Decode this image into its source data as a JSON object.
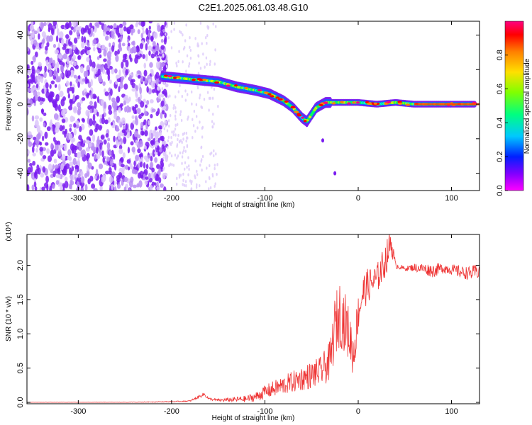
{
  "page": {
    "title": "C2E1.2025.061.03.48.G10"
  },
  "chart_data": [
    {
      "type": "heatmap",
      "title": "C2E1.2025.061.03.48.G10",
      "xlabel": "Height of straight line (km)",
      "ylabel": "Frequency (Hz)",
      "xlim": [
        -355,
        130
      ],
      "ylim": [
        -50,
        48
      ],
      "xticks": [
        -300,
        -200,
        -100,
        0,
        100
      ],
      "yticks": [
        -40,
        -20,
        0,
        20,
        40
      ],
      "colorbar": {
        "label": "Normalized spectral amplitude",
        "range": [
          0.0,
          1.0
        ],
        "ticks": [
          0.0,
          0.2,
          0.4,
          0.6,
          0.8
        ],
        "colormap": [
          "#ff00ff",
          "#5a00ff",
          "#0060ff",
          "#00e0ff",
          "#00ff60",
          "#a0ff00",
          "#ffe000",
          "#ff8000",
          "#ff0000",
          "#ff0080"
        ]
      },
      "ridge_trace": {
        "x": [
          -210,
          -190,
          -170,
          -150,
          -130,
          -110,
          -95,
          -80,
          -70,
          -60,
          -55,
          -45,
          -35,
          -20,
          0,
          20,
          40,
          60,
          80,
          100,
          125
        ],
        "y": [
          16,
          15,
          14,
          13,
          10,
          8,
          6,
          2,
          -2,
          -8,
          -10,
          -2,
          1,
          1,
          1,
          0,
          1,
          0,
          0,
          0,
          0
        ]
      }
    },
    {
      "type": "line",
      "xlabel": "Height of straight line (km)",
      "ylabel": "SNR (10 * v/v)",
      "yscale_label": "(x10⁴)",
      "xlim": [
        -355,
        130
      ],
      "ylim": [
        -0.02,
        2.45
      ],
      "xticks": [
        -300,
        -200,
        -100,
        0,
        100
      ],
      "yticks": [
        0.0,
        0.5,
        1.0,
        1.5,
        2.0
      ],
      "ytick_labels": [
        "0.0",
        "0.5",
        "1.0",
        "1.5",
        "2.0"
      ],
      "series": [
        {
          "color": "#ee3333",
          "x": [
            -355,
            -300,
            -250,
            -200,
            -180,
            -165,
            -160,
            -150,
            -120,
            -110,
            -100,
            -90,
            -80,
            -70,
            -60,
            -50,
            -40,
            -30,
            -25,
            -20,
            -15,
            -10,
            -5,
            0,
            5,
            10,
            20,
            30,
            35,
            40,
            50,
            60,
            70,
            80,
            90,
            100,
            110,
            120,
            130
          ],
          "y": [
            0.0,
            0.0,
            0.0,
            0.01,
            0.02,
            0.12,
            0.05,
            0.03,
            0.05,
            0.08,
            0.15,
            0.2,
            0.25,
            0.3,
            0.35,
            0.4,
            0.45,
            0.6,
            1.1,
            1.3,
            1.2,
            1.0,
            0.7,
            1.3,
            1.6,
            1.7,
            1.8,
            2.1,
            2.35,
            2.0,
            1.95,
            1.97,
            1.95,
            1.92,
            1.96,
            1.94,
            1.9,
            1.88,
            1.92
          ],
          "noise": [
            0.003,
            0.003,
            0.004,
            0.006,
            0.01,
            0.03,
            0.02,
            0.02,
            0.05,
            0.07,
            0.1,
            0.12,
            0.14,
            0.16,
            0.18,
            0.2,
            0.22,
            0.3,
            0.45,
            0.5,
            0.45,
            0.4,
            0.35,
            0.3,
            0.28,
            0.25,
            0.22,
            0.25,
            0.2,
            0.05,
            0.03,
            0.06,
            0.08,
            0.1,
            0.08,
            0.08,
            0.09,
            0.1,
            0.12
          ]
        }
      ]
    }
  ]
}
